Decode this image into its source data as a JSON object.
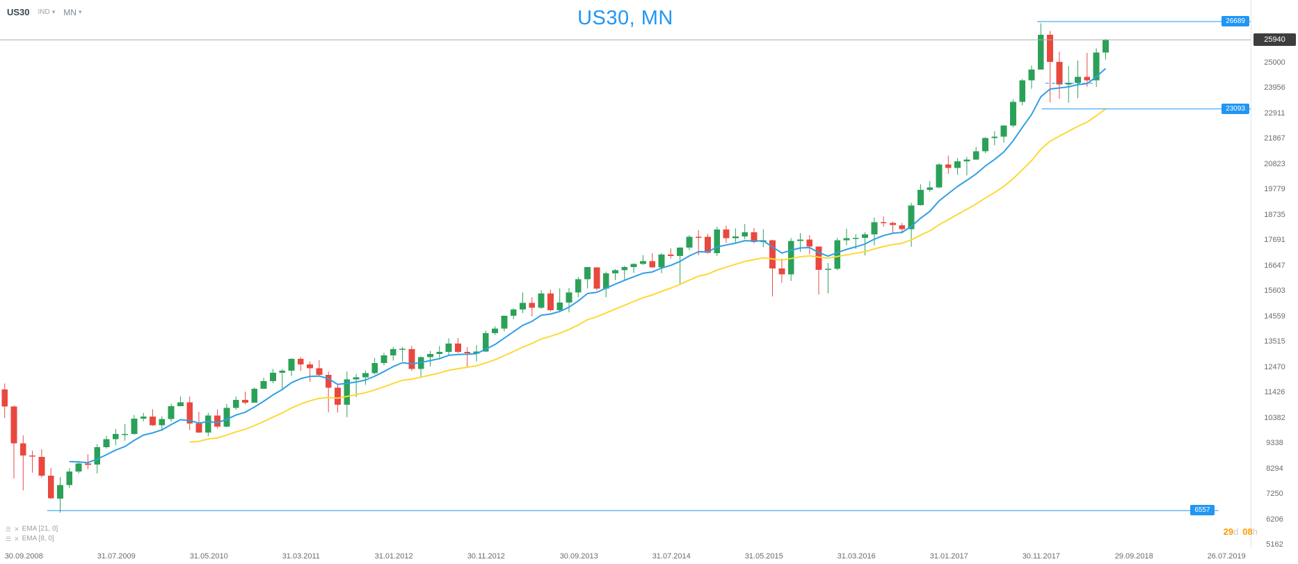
{
  "header": {
    "symbol": "US30",
    "market_type": "IND",
    "timeframe": "MN",
    "title": "US30, MN"
  },
  "indicators": [
    {
      "label": "EMA  [21, 0]"
    },
    {
      "label": "EMA  [8, 0]"
    }
  ],
  "countdown": {
    "days": "29",
    "days_unit": "d",
    "hours": "08",
    "hours_unit": "h"
  },
  "price_axis": {
    "current_price": "25940",
    "ticks": [
      25000,
      23956,
      22911,
      21867,
      20823,
      19779,
      18735,
      17691,
      16647,
      15603,
      14559,
      13515,
      12470,
      11426,
      10382,
      9338,
      8294,
      7250,
      6206,
      5162
    ]
  },
  "time_axis": {
    "labels": [
      "30.09.2008",
      "31.07.2009",
      "31.05.2010",
      "31.03.2011",
      "31.01.2012",
      "30.11.2012",
      "30.09.2013",
      "31.07.2014",
      "31.05.2015",
      "31.03.2016",
      "31.01.2017",
      "30.11.2017",
      "29.09.2018",
      "26.07.2019"
    ],
    "tick_month_indices": [
      0,
      10,
      20,
      30,
      40,
      50,
      60,
      70,
      80,
      90,
      100,
      110,
      120,
      130
    ]
  },
  "colors": {
    "bull": "#2ba158",
    "bear": "#e9483f",
    "accent": "#2196f3",
    "title": "#2196f3",
    "current_line": "#a9a9a9",
    "countdown": "#ff9800"
  },
  "chart_data": {
    "type": "candlestick",
    "title": "US30, MN",
    "symbol": "US30",
    "timeframe": "MN",
    "visible_range": {
      "from": "30.09.2008",
      "to": "26.07.2019"
    },
    "ylim": [
      5162,
      26900
    ],
    "y_tick_step": 1044,
    "grid": false,
    "candles": [
      [
        "2008-09",
        11544,
        11793,
        10366,
        10851
      ],
      [
        "2008-10",
        10847,
        10882,
        7883,
        9325
      ],
      [
        "2008-11",
        9320,
        9656,
        7392,
        8829
      ],
      [
        "2008-12",
        8826,
        9026,
        8118,
        8776
      ],
      [
        "2009-01",
        8772,
        9088,
        7909,
        8001
      ],
      [
        "2009-02",
        8000,
        8315,
        7033,
        7063
      ],
      [
        "2009-03",
        7057,
        7931,
        6470,
        7609
      ],
      [
        "2009-04",
        7609,
        8306,
        7485,
        8168
      ],
      [
        "2009-05",
        8168,
        8591,
        8087,
        8500
      ],
      [
        "2009-06",
        8501,
        8877,
        8260,
        8447
      ],
      [
        "2009-07",
        8447,
        9297,
        8088,
        9172
      ],
      [
        "2009-08",
        9171,
        9631,
        9116,
        9496
      ],
      [
        "2009-09",
        9497,
        9918,
        9253,
        9712
      ],
      [
        "2009-10",
        9712,
        10120,
        9430,
        9713
      ],
      [
        "2009-11",
        9712,
        10496,
        9679,
        10345
      ],
      [
        "2009-12",
        10344,
        10580,
        10236,
        10428
      ],
      [
        "2010-01",
        10431,
        10730,
        10043,
        10067
      ],
      [
        "2010-02",
        10067,
        10438,
        9835,
        10325
      ],
      [
        "2010-03",
        10326,
        10955,
        10222,
        10857
      ],
      [
        "2010-04",
        10857,
        11258,
        10848,
        11009
      ],
      [
        "2010-05",
        11009,
        11259,
        9870,
        10137
      ],
      [
        "2010-06",
        10136,
        10626,
        9757,
        9774
      ],
      [
        "2010-07",
        9774,
        10585,
        9615,
        10466
      ],
      [
        "2010-08",
        10466,
        10720,
        9937,
        10015
      ],
      [
        "2010-09",
        10015,
        10948,
        9990,
        10788
      ],
      [
        "2010-10",
        10789,
        11248,
        10711,
        11118
      ],
      [
        "2010-11",
        11119,
        11451,
        10930,
        11006
      ],
      [
        "2010-12",
        11007,
        11625,
        10995,
        11578
      ],
      [
        "2011-01",
        11578,
        12020,
        11573,
        11892
      ],
      [
        "2011-02",
        11892,
        12391,
        11803,
        12226
      ],
      [
        "2011-03",
        12227,
        12383,
        11555,
        12320
      ],
      [
        "2011-04",
        12320,
        12832,
        12094,
        12811
      ],
      [
        "2011-05",
        12811,
        12876,
        12309,
        12570
      ],
      [
        "2011-06",
        12570,
        12697,
        11863,
        12414
      ],
      [
        "2011-07",
        12414,
        12753,
        12083,
        12143
      ],
      [
        "2011-08",
        12144,
        12283,
        10604,
        11614
      ],
      [
        "2011-09",
        11613,
        11717,
        10597,
        10913
      ],
      [
        "2011-10",
        10913,
        12284,
        10404,
        11955
      ],
      [
        "2011-11",
        11955,
        12188,
        11231,
        12046
      ],
      [
        "2011-12",
        12046,
        12328,
        11735,
        12218
      ],
      [
        "2012-01",
        12221,
        12842,
        12166,
        12633
      ],
      [
        "2012-02",
        12633,
        13056,
        12536,
        12952
      ],
      [
        "2012-03",
        12952,
        13289,
        12734,
        13212
      ],
      [
        "2012-04",
        13212,
        13297,
        12710,
        13214
      ],
      [
        "2012-05",
        13213,
        13338,
        12311,
        12393
      ],
      [
        "2012-06",
        12393,
        12899,
        12035,
        12880
      ],
      [
        "2012-07",
        12880,
        13128,
        12492,
        13009
      ],
      [
        "2012-08",
        13008,
        13330,
        12779,
        13091
      ],
      [
        "2012-09",
        13090,
        13653,
        12977,
        13437
      ],
      [
        "2012-10",
        13437,
        13661,
        13040,
        13096
      ],
      [
        "2012-11",
        13096,
        13290,
        12471,
        13026
      ],
      [
        "2012-12",
        13026,
        13365,
        12696,
        13104
      ],
      [
        "2013-01",
        13104,
        13969,
        13088,
        13861
      ],
      [
        "2013-02",
        13860,
        14149,
        13784,
        14054
      ],
      [
        "2013-03",
        14055,
        14585,
        13937,
        14579
      ],
      [
        "2013-04",
        14578,
        14887,
        14434,
        14840
      ],
      [
        "2013-05",
        14839,
        15542,
        14688,
        15116
      ],
      [
        "2013-06",
        15115,
        15340,
        14551,
        14910
      ],
      [
        "2013-07",
        14910,
        15634,
        14858,
        15500
      ],
      [
        "2013-08",
        15499,
        15658,
        14760,
        14810
      ],
      [
        "2013-09",
        14810,
        15709,
        14777,
        15130
      ],
      [
        "2013-10",
        15129,
        15721,
        14719,
        15546
      ],
      [
        "2013-11",
        15545,
        16175,
        15341,
        16086
      ],
      [
        "2013-12",
        16086,
        16588,
        15703,
        16577
      ],
      [
        "2014-01",
        16572,
        16573,
        15618,
        15699
      ],
      [
        "2014-02",
        15698,
        16398,
        15341,
        16322
      ],
      [
        "2014-03",
        16321,
        16506,
        16046,
        16458
      ],
      [
        "2014-04",
        16457,
        16632,
        16015,
        16581
      ],
      [
        "2014-05",
        16580,
        16735,
        16341,
        16717
      ],
      [
        "2014-06",
        16717,
        17075,
        16674,
        16827
      ],
      [
        "2014-07",
        16826,
        17151,
        16563,
        16563
      ],
      [
        "2014-08",
        16563,
        17153,
        16334,
        17098
      ],
      [
        "2014-09",
        17098,
        17350,
        16935,
        17043
      ],
      [
        "2014-10",
        17042,
        17395,
        15855,
        17391
      ],
      [
        "2014-11",
        17390,
        17894,
        17279,
        17828
      ],
      [
        "2014-12",
        17828,
        18103,
        17067,
        17823
      ],
      [
        "2015-01",
        17823,
        17951,
        17136,
        17165
      ],
      [
        "2015-02",
        17164,
        18244,
        17037,
        18133
      ],
      [
        "2015-03",
        18132,
        18288,
        17579,
        17776
      ],
      [
        "2015-04",
        17776,
        18176,
        17585,
        17841
      ],
      [
        "2015-05",
        17840,
        18351,
        17733,
        18011
      ],
      [
        "2015-06",
        18011,
        18188,
        17563,
        17620
      ],
      [
        "2015-07",
        17619,
        18137,
        17399,
        17690
      ],
      [
        "2015-08",
        17690,
        17710,
        15370,
        16528
      ],
      [
        "2015-09",
        16528,
        16933,
        15942,
        16285
      ],
      [
        "2015-10",
        16285,
        17779,
        16013,
        17664
      ],
      [
        "2015-11",
        17663,
        17977,
        17210,
        17720
      ],
      [
        "2015-12",
        17719,
        17901,
        17116,
        17425
      ],
      [
        "2016-01",
        17425,
        17426,
        15450,
        16466
      ],
      [
        "2016-02",
        16466,
        16757,
        15503,
        16517
      ],
      [
        "2016-03",
        16517,
        17790,
        16450,
        17685
      ],
      [
        "2016-04",
        17685,
        18168,
        17484,
        17774
      ],
      [
        "2016-05",
        17774,
        17934,
        17331,
        17787
      ],
      [
        "2016-06",
        17787,
        18016,
        17063,
        17930
      ],
      [
        "2016-07",
        17930,
        18622,
        17471,
        18432
      ],
      [
        "2016-08",
        18432,
        18668,
        18247,
        18401
      ],
      [
        "2016-09",
        18401,
        18450,
        17992,
        18308
      ],
      [
        "2016-10",
        18308,
        18399,
        17960,
        18142
      ],
      [
        "2016-11",
        18142,
        19226,
        17418,
        19124
      ],
      [
        "2016-12",
        19124,
        19988,
        19114,
        19763
      ],
      [
        "2017-01",
        19763,
        20126,
        19678,
        19864
      ],
      [
        "2017-02",
        19864,
        20852,
        19831,
        20812
      ],
      [
        "2017-03",
        20813,
        21169,
        20413,
        20663
      ],
      [
        "2017-04",
        20663,
        21071,
        20380,
        20941
      ],
      [
        "2017-05",
        20941,
        21113,
        20354,
        21009
      ],
      [
        "2017-06",
        21009,
        21529,
        20995,
        21350
      ],
      [
        "2017-07",
        21350,
        21930,
        21280,
        21891
      ],
      [
        "2017-08",
        21891,
        22179,
        21600,
        21948
      ],
      [
        "2017-09",
        21948,
        22420,
        21710,
        22405
      ],
      [
        "2017-10",
        22405,
        23486,
        22336,
        23377
      ],
      [
        "2017-11",
        23377,
        24328,
        23243,
        24272
      ],
      [
        "2017-12",
        24272,
        24877,
        23922,
        24719
      ],
      [
        "2018-01",
        24719,
        26617,
        24719,
        26149
      ],
      [
        "2018-02",
        26149,
        26306,
        23360,
        25029
      ],
      [
        "2018-03",
        25029,
        25450,
        23509,
        24103
      ],
      [
        "2018-04",
        24103,
        24859,
        23344,
        24163
      ],
      [
        "2018-05",
        24163,
        25087,
        23531,
        24416
      ],
      [
        "2018-06",
        24416,
        25402,
        23997,
        24271
      ],
      [
        "2018-07",
        24271,
        25587,
        23998,
        25415
      ],
      [
        "2018-08",
        25415,
        25977,
        25120,
        25940
      ]
    ],
    "overlays": [
      {
        "type": "ema",
        "period": 21,
        "color": "#fdd835"
      },
      {
        "type": "ema",
        "period": 8,
        "color": "#2e9fe6"
      }
    ],
    "annotations": [
      {
        "id": "current-price-line",
        "type": "hline",
        "price": 25940,
        "color": "#a9a9a9"
      },
      {
        "id": "high-level-line",
        "type": "hray",
        "price": 26689,
        "from_month": 112.1,
        "color": "#2196f3",
        "label": "26689",
        "label_position": "right-edge"
      },
      {
        "id": "support-level-line",
        "type": "hray",
        "price": 23093,
        "from_month": 112.6,
        "color": "#2196f3",
        "label": "23093",
        "label_position": "right-edge"
      },
      {
        "id": "crisis-low-line",
        "type": "hsegment",
        "price": 6557,
        "from_month": 5.1,
        "to_month": 131.7,
        "color": "#2196f3",
        "label": "6557",
        "label_position": "line-end"
      },
      {
        "id": "minor-dashed-level",
        "type": "hsegment",
        "price": 24150,
        "from_month": 113,
        "to_month": 118.3,
        "color": "#2196f3",
        "dashed": true
      }
    ]
  }
}
